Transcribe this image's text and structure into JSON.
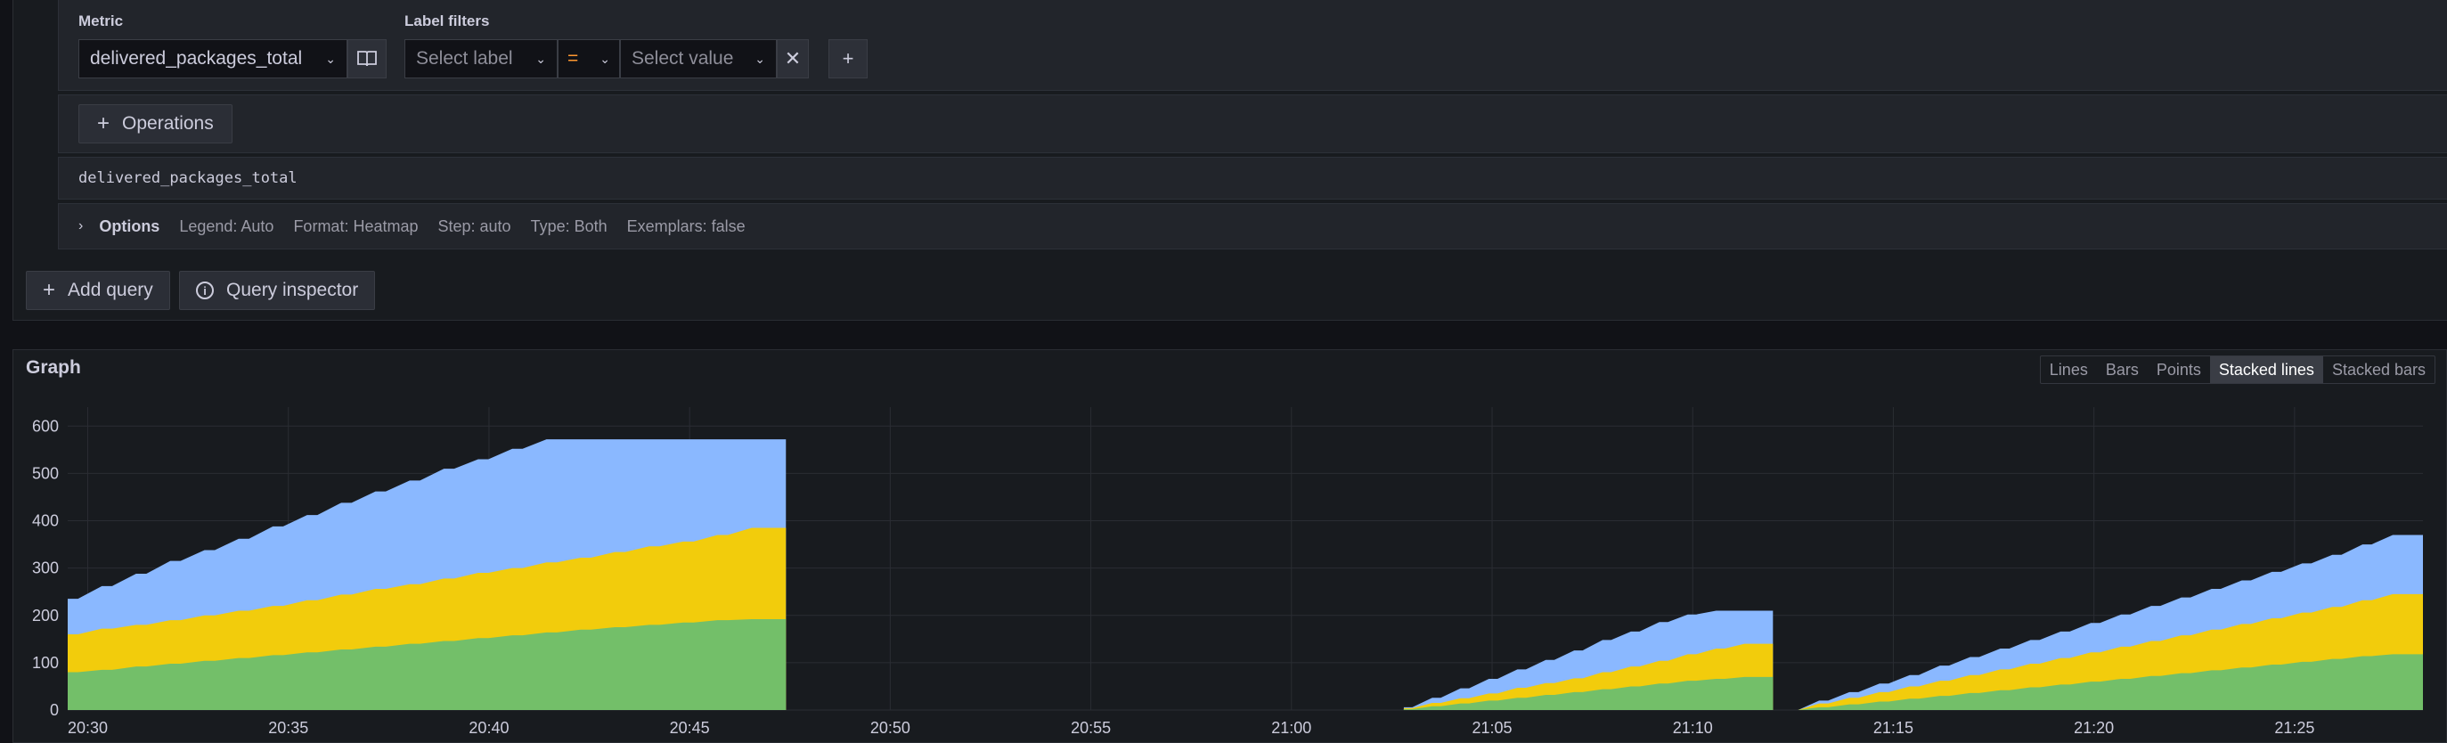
{
  "metric": {
    "label": "Metric",
    "value": "delivered_packages_total"
  },
  "label_filters": {
    "label": "Label filters",
    "label_placeholder": "Select label",
    "operator": "=",
    "value_placeholder": "Select value"
  },
  "operations_label": "Operations",
  "raw_query": "delivered_packages_total",
  "options": {
    "title": "Options",
    "items": [
      "Legend: Auto",
      "Format: Heatmap",
      "Step: auto",
      "Type: Both",
      "Exemplars: false"
    ]
  },
  "actions": {
    "add_query": "Add query",
    "query_inspector": "Query inspector"
  },
  "graph": {
    "title": "Graph",
    "modes": [
      "Lines",
      "Bars",
      "Points",
      "Stacked lines",
      "Stacked bars"
    ],
    "active_mode": "Stacked lines"
  },
  "colors": {
    "green": "#73bf69",
    "yellow": "#f2cc0c",
    "blue": "#8ab8ff"
  },
  "chart_data": {
    "type": "area",
    "stacked": true,
    "xlabel": "",
    "ylabel": "",
    "ylim": [
      0,
      640
    ],
    "y_ticks": [
      0,
      100,
      200,
      300,
      400,
      500,
      600
    ],
    "x_ticks": [
      "20:30",
      "20:35",
      "20:40",
      "20:45",
      "20:50",
      "20:55",
      "21:00",
      "21:05",
      "21:10",
      "21:15",
      "21:20",
      "21:25"
    ],
    "x_range_minutes": [
      -0.5,
      58.2
    ],
    "segments": [
      {
        "start": -0.5,
        "end": 17.4,
        "values": {
          "green": [
            80,
            85,
            92,
            98,
            104,
            110,
            116,
            122,
            128,
            134,
            140,
            146,
            152,
            158,
            164,
            170,
            175,
            180,
            185,
            190,
            192
          ],
          "yellow": [
            160,
            172,
            180,
            190,
            200,
            210,
            220,
            232,
            244,
            256,
            266,
            278,
            290,
            300,
            312,
            322,
            334,
            346,
            356,
            370,
            385
          ],
          "blue": [
            235,
            262,
            288,
            315,
            338,
            362,
            388,
            412,
            438,
            462,
            485,
            510,
            530,
            552,
            572,
            572,
            572,
            572,
            572,
            572,
            572
          ]
        }
      },
      {
        "start": 32.8,
        "end": 42.0,
        "values": {
          "green": [
            2,
            8,
            14,
            20,
            26,
            32,
            38,
            44,
            50,
            56,
            62,
            66,
            70
          ],
          "yellow": [
            4,
            15,
            25,
            35,
            47,
            57,
            67,
            80,
            92,
            104,
            118,
            130,
            140
          ],
          "blue": [
            6,
            26,
            46,
            66,
            86,
            106,
            126,
            148,
            166,
            186,
            202,
            210,
            210
          ]
        }
      },
      {
        "start": 42.4,
        "end": 58.2,
        "values": {
          "green": [
            0,
            6,
            12,
            18,
            24,
            30,
            36,
            42,
            48,
            54,
            60,
            66,
            72,
            78,
            84,
            90,
            96,
            102,
            108,
            114,
            118
          ],
          "yellow": [
            0,
            14,
            26,
            38,
            50,
            62,
            74,
            86,
            98,
            110,
            122,
            134,
            146,
            158,
            170,
            182,
            194,
            206,
            218,
            232,
            245
          ],
          "blue": [
            0,
            20,
            38,
            56,
            74,
            94,
            112,
            130,
            148,
            166,
            184,
            202,
            220,
            238,
            256,
            274,
            292,
            310,
            328,
            350,
            370
          ]
        }
      }
    ]
  }
}
